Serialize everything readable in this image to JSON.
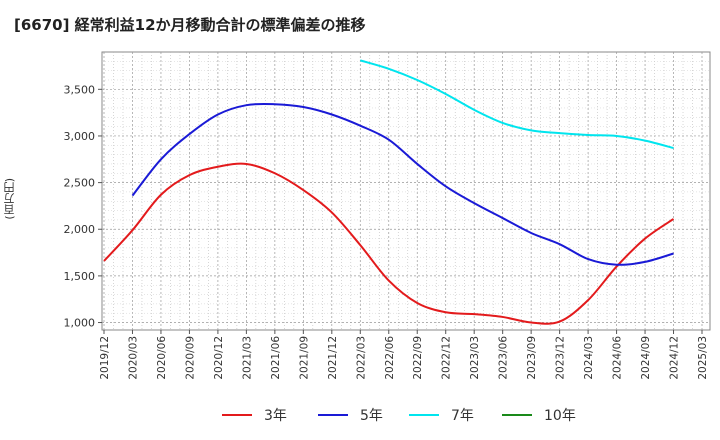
{
  "chart_data": {
    "type": "line",
    "title": "[6670]  経常利益12か月移動合計の標準偏差の推移",
    "ylabel": "(百万円)",
    "xlabel": "",
    "x": [
      "2019/12",
      "2020/03",
      "2020/06",
      "2020/09",
      "2020/12",
      "2021/03",
      "2021/06",
      "2021/09",
      "2021/12",
      "2022/03",
      "2022/06",
      "2022/09",
      "2022/12",
      "2023/03",
      "2023/06",
      "2023/09",
      "2023/12",
      "2024/03",
      "2024/06",
      "2024/09",
      "2024/12"
    ],
    "x_ticks": [
      "2019/12",
      "2020/03",
      "2020/06",
      "2020/09",
      "2020/12",
      "2021/03",
      "2021/06",
      "2021/09",
      "2021/12",
      "2022/03",
      "2022/06",
      "2022/09",
      "2022/12",
      "2023/03",
      "2023/06",
      "2023/09",
      "2023/12",
      "2024/03",
      "2024/06",
      "2024/09",
      "2024/12",
      "2025/03"
    ],
    "y_ticks": [
      1000,
      1500,
      2000,
      2500,
      3000,
      3500
    ],
    "y_tick_labels": [
      "1,000",
      "1,500",
      "2,000",
      "2,500",
      "3,000",
      "3,500"
    ],
    "ylim": [
      920,
      3900
    ],
    "grid": true,
    "legend_position": "bottom",
    "series": [
      {
        "name": "3年",
        "color": "#e31a1c",
        "values": [
          1660,
          1990,
          2370,
          2580,
          2670,
          2700,
          2600,
          2420,
          2180,
          1830,
          1450,
          1210,
          1110,
          1090,
          1060,
          1000,
          1010,
          1240,
          1600,
          1900,
          2110
        ]
      },
      {
        "name": "5年",
        "color": "#1a1ad6",
        "values": [
          null,
          2360,
          2750,
          3020,
          3230,
          3330,
          3340,
          3310,
          3230,
          3110,
          2960,
          2700,
          2460,
          2280,
          2120,
          1960,
          1840,
          1680,
          1620,
          1650,
          1740
        ]
      },
      {
        "name": "7年",
        "color": "#00e5ee",
        "values": [
          null,
          null,
          null,
          null,
          null,
          null,
          null,
          null,
          null,
          3810,
          3720,
          3600,
          3450,
          3280,
          3140,
          3060,
          3030,
          3010,
          3000,
          2950,
          2870
        ]
      },
      {
        "name": "10年",
        "color": "#1a8a1a",
        "values": [
          null,
          null,
          null,
          null,
          null,
          null,
          null,
          null,
          null,
          null,
          null,
          null,
          null,
          null,
          null,
          null,
          null,
          null,
          null,
          null,
          null
        ]
      }
    ]
  }
}
